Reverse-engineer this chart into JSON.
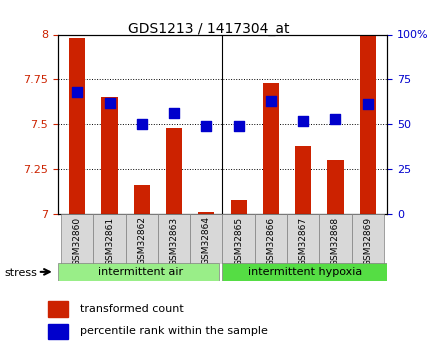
{
  "title": "GDS1213 / 1417304_at",
  "samples": [
    "GSM32860",
    "GSM32861",
    "GSM32862",
    "GSM32863",
    "GSM32864",
    "GSM32865",
    "GSM32866",
    "GSM32867",
    "GSM32868",
    "GSM32869"
  ],
  "transformed_count": [
    7.98,
    7.65,
    7.16,
    7.48,
    7.01,
    7.08,
    7.73,
    7.38,
    7.3,
    7.99
  ],
  "percentile_rank": [
    68,
    62,
    50,
    56,
    49,
    49,
    63,
    52,
    53,
    61
  ],
  "ylim_left": [
    7.0,
    8.0
  ],
  "ylim_right": [
    0,
    100
  ],
  "yticks_left": [
    7.0,
    7.25,
    7.5,
    7.75,
    8.0
  ],
  "ytick_labels_left": [
    "7",
    "7.25",
    "7.5",
    "7.75",
    "8"
  ],
  "yticks_right": [
    0,
    25,
    50,
    75,
    100
  ],
  "ytick_labels_right": [
    "0",
    "25",
    "50",
    "75",
    "100%"
  ],
  "bar_color": "#cc2200",
  "dot_color": "#0000cc",
  "group1_label": "intermittent air",
  "group2_label": "intermittent hypoxia",
  "group1_count": 5,
  "group2_count": 5,
  "stress_label": "stress",
  "legend_bar_label": "transformed count",
  "legend_dot_label": "percentile rank within the sample",
  "bg_color_group1": "#99ee88",
  "bg_color_group2": "#55dd44",
  "sample_box_color": "#d8d8d8",
  "tick_color_left": "#cc2200",
  "tick_color_right": "#0000cc",
  "bar_width": 0.5,
  "dot_size": 50
}
